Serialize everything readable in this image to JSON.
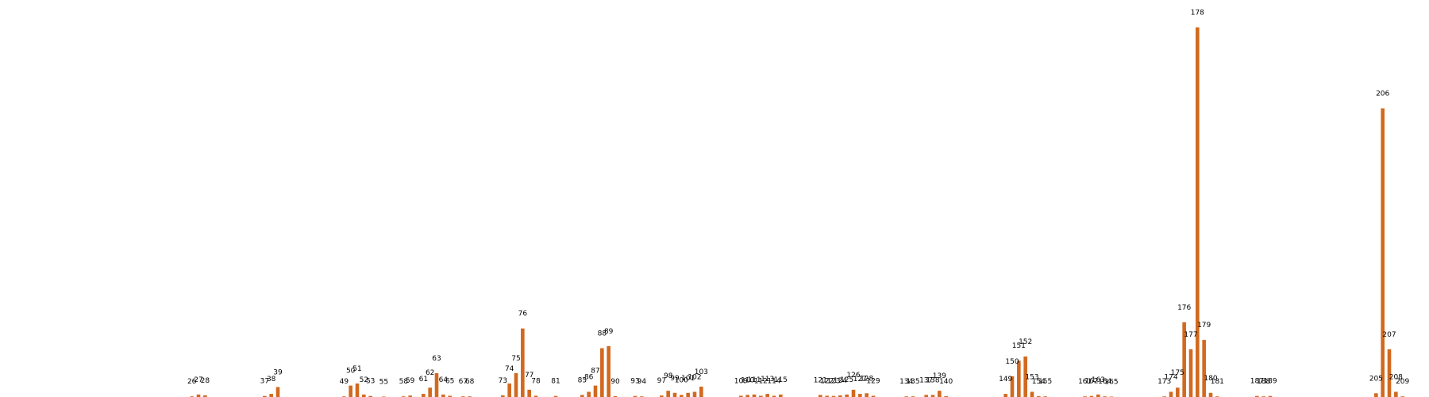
{
  "chart_data": {
    "type": "bar",
    "title": "",
    "xlabel": "",
    "ylabel": "",
    "grid": false,
    "bar_color": "#d2691e",
    "label_color": "#000000",
    "background": "#ffffff",
    "x_domain": [
      -3,
      213
    ],
    "ylim": [
      0,
      182
    ],
    "points": [
      {
        "x": 26,
        "v": 0.3
      },
      {
        "x": 27,
        "v": 1.2
      },
      {
        "x": 28,
        "v": 0.8
      },
      {
        "x": 37,
        "v": 0.5
      },
      {
        "x": 38,
        "v": 1.5
      },
      {
        "x": 39,
        "v": 4.8
      },
      {
        "x": 49,
        "v": 0.3
      },
      {
        "x": 50,
        "v": 5.5
      },
      {
        "x": 51,
        "v": 6.5
      },
      {
        "x": 52,
        "v": 1.2
      },
      {
        "x": 53,
        "v": 0.5
      },
      {
        "x": 55,
        "v": 0.2
      },
      {
        "x": 58,
        "v": 0.3
      },
      {
        "x": 59,
        "v": 0.7
      },
      {
        "x": 61,
        "v": 1.5
      },
      {
        "x": 62,
        "v": 4.5
      },
      {
        "x": 63,
        "v": 11.5
      },
      {
        "x": 64,
        "v": 1.2
      },
      {
        "x": 65,
        "v": 0.6
      },
      {
        "x": 67,
        "v": 0.3
      },
      {
        "x": 68,
        "v": 0.3
      },
      {
        "x": 73,
        "v": 0.8
      },
      {
        "x": 74,
        "v": 6.5
      },
      {
        "x": 75,
        "v": 11.5
      },
      {
        "x": 76,
        "v": 33.0
      },
      {
        "x": 77,
        "v": 3.5
      },
      {
        "x": 78,
        "v": 0.6
      },
      {
        "x": 81,
        "v": 0.5
      },
      {
        "x": 85,
        "v": 1.0
      },
      {
        "x": 86,
        "v": 2.5
      },
      {
        "x": 87,
        "v": 5.5
      },
      {
        "x": 88,
        "v": 23.5
      },
      {
        "x": 89,
        "v": 24.5
      },
      {
        "x": 90,
        "v": 0.4
      },
      {
        "x": 93,
        "v": 0.5
      },
      {
        "x": 94,
        "v": 0.3
      },
      {
        "x": 97,
        "v": 0.7
      },
      {
        "x": 98,
        "v": 3.0
      },
      {
        "x": 99,
        "v": 2.0
      },
      {
        "x": 100,
        "v": 1.0
      },
      {
        "x": 101,
        "v": 2.0
      },
      {
        "x": 102,
        "v": 2.5
      },
      {
        "x": 103,
        "v": 5.0
      },
      {
        "x": 109,
        "v": 0.6
      },
      {
        "x": 110,
        "v": 1.0
      },
      {
        "x": 111,
        "v": 1.2
      },
      {
        "x": 112,
        "v": 0.6
      },
      {
        "x": 113,
        "v": 1.5
      },
      {
        "x": 114,
        "v": 0.6
      },
      {
        "x": 115,
        "v": 1.2
      },
      {
        "x": 121,
        "v": 1.0
      },
      {
        "x": 122,
        "v": 0.6
      },
      {
        "x": 123,
        "v": 0.5
      },
      {
        "x": 124,
        "v": 0.8
      },
      {
        "x": 125,
        "v": 1.2
      },
      {
        "x": 126,
        "v": 3.5
      },
      {
        "x": 127,
        "v": 1.5
      },
      {
        "x": 128,
        "v": 1.8
      },
      {
        "x": 129,
        "v": 0.6
      },
      {
        "x": 134,
        "v": 0.3
      },
      {
        "x": 135,
        "v": 0.3
      },
      {
        "x": 137,
        "v": 1.0
      },
      {
        "x": 138,
        "v": 1.0
      },
      {
        "x": 139,
        "v": 3.0
      },
      {
        "x": 140,
        "v": 0.4
      },
      {
        "x": 149,
        "v": 1.5
      },
      {
        "x": 150,
        "v": 10.0
      },
      {
        "x": 151,
        "v": 17.5
      },
      {
        "x": 152,
        "v": 19.5
      },
      {
        "x": 153,
        "v": 2.5
      },
      {
        "x": 154,
        "v": 0.4
      },
      {
        "x": 155,
        "v": 0.3
      },
      {
        "x": 161,
        "v": 0.3
      },
      {
        "x": 162,
        "v": 0.5
      },
      {
        "x": 163,
        "v": 1.2
      },
      {
        "x": 164,
        "v": 0.3
      },
      {
        "x": 165,
        "v": 0.2
      },
      {
        "x": 173,
        "v": 0.3
      },
      {
        "x": 174,
        "v": 2.5
      },
      {
        "x": 175,
        "v": 4.5
      },
      {
        "x": 176,
        "v": 36.0
      },
      {
        "x": 177,
        "v": 23.0
      },
      {
        "x": 178,
        "v": 178.0
      },
      {
        "x": 179,
        "v": 27.5
      },
      {
        "x": 180,
        "v": 2.0
      },
      {
        "x": 181,
        "v": 0.3
      },
      {
        "x": 187,
        "v": 0.5
      },
      {
        "x": 188,
        "v": 0.3
      },
      {
        "x": 189,
        "v": 0.5
      },
      {
        "x": 205,
        "v": 1.8
      },
      {
        "x": 206,
        "v": 139.0
      },
      {
        "x": 207,
        "v": 23.0
      },
      {
        "x": 208,
        "v": 2.5
      },
      {
        "x": 209,
        "v": 0.3
      }
    ]
  }
}
